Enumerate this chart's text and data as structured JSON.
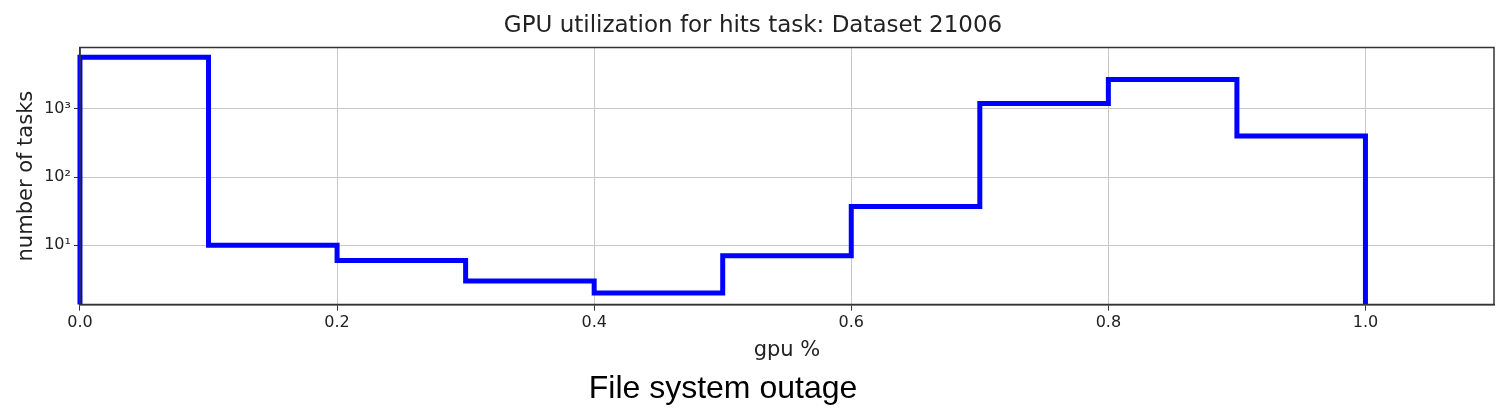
{
  "chart_data": {
    "type": "histogram",
    "title": "GPU utilization for hits task: Dataset 21006",
    "xlabel": "gpu %",
    "ylabel": "number of tasks",
    "bins": [
      0,
      0.1,
      0.2,
      0.3,
      0.4,
      0.5,
      0.6,
      0.7,
      0.8,
      0.9,
      1.0
    ],
    "values": [
      5700,
      10,
      6,
      3,
      2,
      7,
      37,
      1200,
      2700,
      400
    ],
    "color": "#0000ff",
    "log": "y",
    "grid": true,
    "xlim": [
      0,
      1.1
    ],
    "xticks": [
      {
        "value": 0,
        "label": "0.0"
      },
      0.2,
      0.4,
      0.6,
      0.8,
      {
        "value": 1,
        "label": "1.0"
      }
    ],
    "ylim": [
      1.35,
      7900
    ],
    "yticks": [
      {
        "value": 10,
        "label": "10¹"
      },
      {
        "value": 100,
        "label": "10²"
      },
      {
        "value": 1000,
        "label": "10³"
      }
    ],
    "annotations": [
      "File system outage"
    ]
  }
}
